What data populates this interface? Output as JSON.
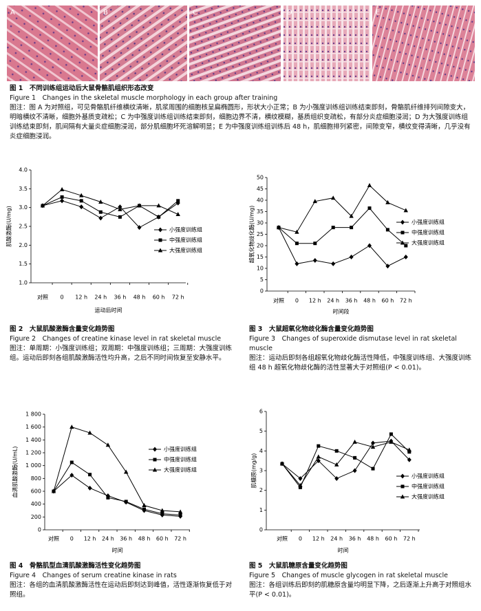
{
  "figure1": {
    "panels": [
      "A",
      "B",
      "C",
      "D",
      "E"
    ],
    "caption_title": "图 1　不同训练组运动后大鼠骨骼肌组织形态改变",
    "caption_english": "Figure 1　Changes in the skeletal muscle morphology in each group after training",
    "caption_note": "图注：图 A 为对照组，可见骨骼肌纤维横纹清晰，肌浆周围的细胞核呈扁椭圆形，形状大小正常；B 为小强度训练组训练结束即刻，骨骼肌纤维排列间隙变大，明暗横纹不清晰，细胞外基质变疏松；C 为中强度训练组训练结束即刻，细胞边界不清，横纹模糊，基质组织变疏松，有部分炎症细胞浸润；D 为大强度训练组训练结束即刻，肌间隔有大量炎症细胞浸润，部分肌细胞坏死溶解明显；E 为中强度训练组训练后 48 h，肌细胞排列紧密，间隙变窄，横纹变得清晰，几乎没有炎症细胞浸润。"
  },
  "chart_data": [
    {
      "type": "line",
      "ylabel": "肌酸激酶(U/mg)",
      "xlabel": "运动后时间",
      "categories": [
        "对照",
        "0",
        "12 h",
        "24 h",
        "36 h",
        "48 h",
        "60 h",
        "72 h"
      ],
      "ylim": [
        1,
        4
      ],
      "yticks": [
        {
          "value": 1,
          "label": "1.0"
        },
        {
          "value": 1.5,
          "label": "1.5"
        },
        {
          "value": 2,
          "label": "2.0"
        },
        {
          "value": 2.5,
          "label": "2.5"
        },
        {
          "value": 3,
          "label": "3.0"
        },
        {
          "value": 3.5,
          "label": "3.5"
        },
        {
          "value": 4,
          "label": "4.0"
        }
      ],
      "series": [
        {
          "name": "小强度训练组",
          "color": "#000000",
          "marker": "diamond",
          "values": [
            3.05,
            3.18,
            3.02,
            2.72,
            3.02,
            2.47,
            2.75,
            3.12
          ]
        },
        {
          "name": "中强度训练组",
          "color": "#000000",
          "marker": "square",
          "values": [
            3.05,
            3.28,
            3.18,
            2.88,
            2.75,
            3.05,
            2.75,
            3.18
          ]
        },
        {
          "name": "大强度训练组",
          "color": "#000000",
          "marker": "triangle",
          "values": [
            3.05,
            3.48,
            3.32,
            3.15,
            2.95,
            3.05,
            3.05,
            2.82
          ]
        }
      ],
      "caption_title": "图 2　大鼠肌酸激酶含量变化趋势图",
      "caption_english": "Figure 2　Changes of creatine kinase level in rat skeletal muscle",
      "caption_note": "图注：单周期：小强度训练组；双周期：中强度训练组；三周期：大强度训练组。运动后即刻各组肌酸激酶活性均升高，之后不同时间恢复至安静水平。"
    },
    {
      "type": "line",
      "ylabel": "超氧化物歧化酶(U/mg)",
      "xlabel": "时间段",
      "categories": [
        "对照",
        "0",
        "12 h",
        "24 h",
        "36 h",
        "48 h",
        "60 h",
        "72 h"
      ],
      "ylim": [
        0,
        50
      ],
      "yticks": [
        0,
        5,
        10,
        15,
        20,
        25,
        30,
        35,
        40,
        45,
        50
      ],
      "series": [
        {
          "name": "小强度训练组",
          "color": "#000000",
          "marker": "diamond",
          "values": [
            28,
            12,
            13.5,
            12,
            15,
            20,
            11,
            15
          ]
        },
        {
          "name": "中强度训练组",
          "color": "#000000",
          "marker": "square",
          "values": [
            28,
            21,
            21,
            28,
            28,
            36.5,
            27,
            20
          ]
        },
        {
          "name": "大强度训练组",
          "color": "#000000",
          "marker": "triangle",
          "values": [
            28,
            26,
            39.5,
            41,
            33,
            46.5,
            39,
            35.5
          ]
        }
      ],
      "caption_title": "图 3　大鼠超氧化物歧化酶含量变化趋势图",
      "caption_english": "Figure 3　Changes of superoxide dismutase level in rat skeletal muscle",
      "caption_note": "图注：运动后即刻各组超氧化物歧化酶活性降低，中强度训练组、大强度训练组 48 h 超氧化物歧化酶的活性显著大于对照组(P < 0.01)。"
    },
    {
      "type": "line",
      "ylabel": "血清肌酸激酶(U/mL)",
      "xlabel": "时间",
      "categories": [
        "对照",
        "0",
        "12 h",
        "24 h",
        "36 h",
        "48 h",
        "60 h",
        "72 h"
      ],
      "ylim": [
        0,
        1800
      ],
      "yticks": [
        0,
        200,
        400,
        600,
        800,
        {
          "value": 1000,
          "label": "1 000"
        },
        {
          "value": 1200,
          "label": "1 200"
        },
        {
          "value": 1400,
          "label": "1 400"
        },
        {
          "value": 1600,
          "label": "1 600"
        },
        {
          "value": 1800,
          "label": "1 800"
        }
      ],
      "series": [
        {
          "name": "小强度训练组",
          "color": "#000000",
          "marker": "diamond",
          "values": [
            600,
            850,
            650,
            530,
            430,
            300,
            230,
            210
          ]
        },
        {
          "name": "中强度训练组",
          "color": "#000000",
          "marker": "square",
          "values": [
            600,
            1050,
            860,
            500,
            440,
            320,
            250,
            230
          ]
        },
        {
          "name": "大强度训练组",
          "color": "#000000",
          "marker": "triangle",
          "values": [
            600,
            1600,
            1510,
            1320,
            900,
            380,
            300,
            280
          ]
        }
      ],
      "caption_title": "图 4　骨骼肌型血清肌酸激酶活性变化趋势图",
      "caption_english": "Figure 4　Changes of serum creatine kinase in rats",
      "caption_note": "图注：各组的血清肌酸激酶活性在运动后即刻达到峰值，活性逐渐恢复低于对照组。"
    },
    {
      "type": "line",
      "ylabel": "肌糖原(mg/g)",
      "xlabel": "时间",
      "categories": [
        "对照",
        "0",
        "12 h",
        "24 h",
        "36 h",
        "48 h",
        "60 h",
        "72 h"
      ],
      "ylim": [
        0,
        6
      ],
      "yticks": [
        0,
        1,
        2,
        3,
        4,
        5,
        6
      ],
      "series": [
        {
          "name": "小强度训练组",
          "color": "#000000",
          "marker": "diamond",
          "values": [
            3.35,
            2.6,
            3.5,
            2.6,
            3.0,
            4.4,
            4.5,
            3.55
          ]
        },
        {
          "name": "中强度训练组",
          "color": "#000000",
          "marker": "square",
          "values": [
            3.35,
            2.15,
            4.25,
            4.0,
            3.65,
            3.1,
            4.85,
            3.95
          ]
        },
        {
          "name": "大强度训练组",
          "color": "#000000",
          "marker": "triangle",
          "values": [
            3.35,
            2.25,
            3.7,
            3.3,
            4.45,
            4.2,
            4.45,
            4.05
          ]
        }
      ],
      "caption_title": "图 5　大鼠肌糖原含量变化趋势图",
      "caption_english": "Figure 5　Changes of muscle glycogen in rat skeletal muscle",
      "caption_note": "图注：各组训练后即刻的肌糖原含量均明显下降，之后逐渐上升高于对照组水平(P < 0.01)。"
    }
  ]
}
